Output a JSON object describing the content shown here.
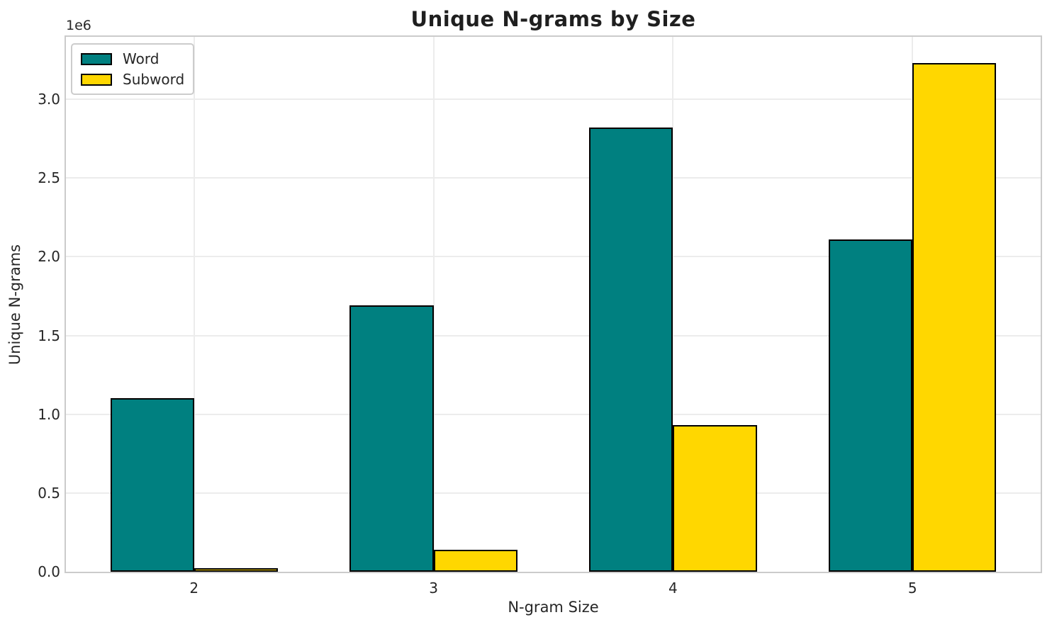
{
  "chart_data": {
    "type": "bar",
    "title": "Unique N-grams by Size",
    "xlabel": "N-gram Size",
    "ylabel": "Unique N-grams",
    "offset_text": "1e6",
    "categories": [
      2,
      3,
      4,
      5
    ],
    "x_tick_labels": [
      "2",
      "3",
      "4",
      "5"
    ],
    "series": [
      {
        "name": "Word",
        "color": "#008080",
        "values": [
          1100000,
          1690000,
          2820000,
          2110000
        ]
      },
      {
        "name": "Subword",
        "color": "#FFD700",
        "values": [
          20000,
          140000,
          930000,
          3230000
        ]
      }
    ],
    "y_ticks": [
      0,
      500000,
      1000000,
      1500000,
      2000000,
      2500000,
      3000000
    ],
    "y_tick_labels": [
      "0.0",
      "0.5",
      "1.0",
      "1.5",
      "2.0",
      "2.5",
      "3.0"
    ],
    "ylim": [
      0,
      3396000
    ],
    "xlim": [
      1.465,
      5.535
    ],
    "bar_width": 0.35,
    "grid": true,
    "legend": {
      "entries": [
        "Word",
        "Subword"
      ],
      "position": "upper left"
    },
    "edge_color": "#000000",
    "grid_color": "#ececec",
    "spine_color": "#cbcbcb",
    "text_color": "#262626"
  }
}
